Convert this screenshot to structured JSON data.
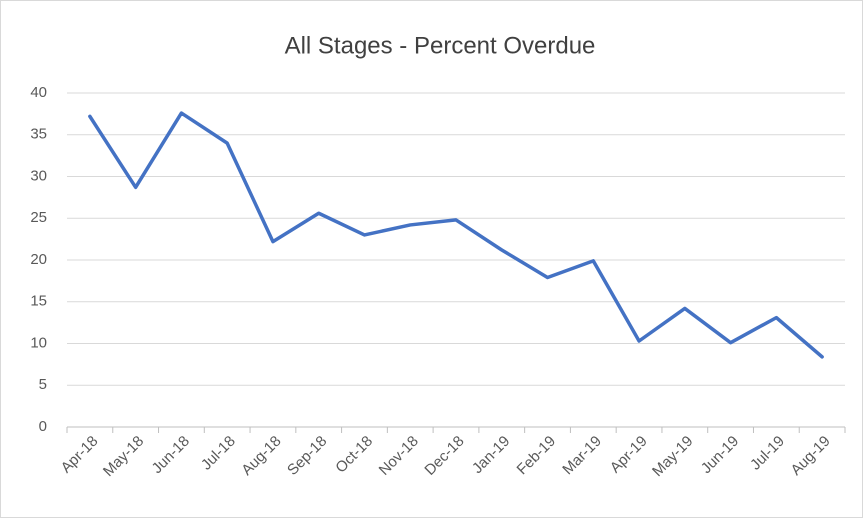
{
  "chart_data": {
    "type": "line",
    "title": "All Stages - Percent Overdue",
    "categories": [
      "Apr-18",
      "May-18",
      "Jun-18",
      "Jul-18",
      "Aug-18",
      "Sep-18",
      "Oct-18",
      "Nov-18",
      "Dec-18",
      "Jan-19",
      "Feb-19",
      "Mar-19",
      "Apr-19",
      "May-19",
      "Jun-19",
      "Jul-19",
      "Aug-19"
    ],
    "series": [
      {
        "name": "Percent Overdue",
        "color": "#4472c4",
        "values": [
          37.2,
          28.7,
          37.6,
          34.0,
          22.2,
          25.6,
          23.0,
          24.2,
          24.8,
          21.2,
          17.9,
          19.9,
          10.3,
          14.2,
          10.1,
          13.1,
          8.4
        ]
      }
    ],
    "ylim": [
      0,
      40
    ],
    "yticks": [
      0,
      5,
      10,
      15,
      20,
      25,
      30,
      35,
      40
    ],
    "grid": true
  }
}
